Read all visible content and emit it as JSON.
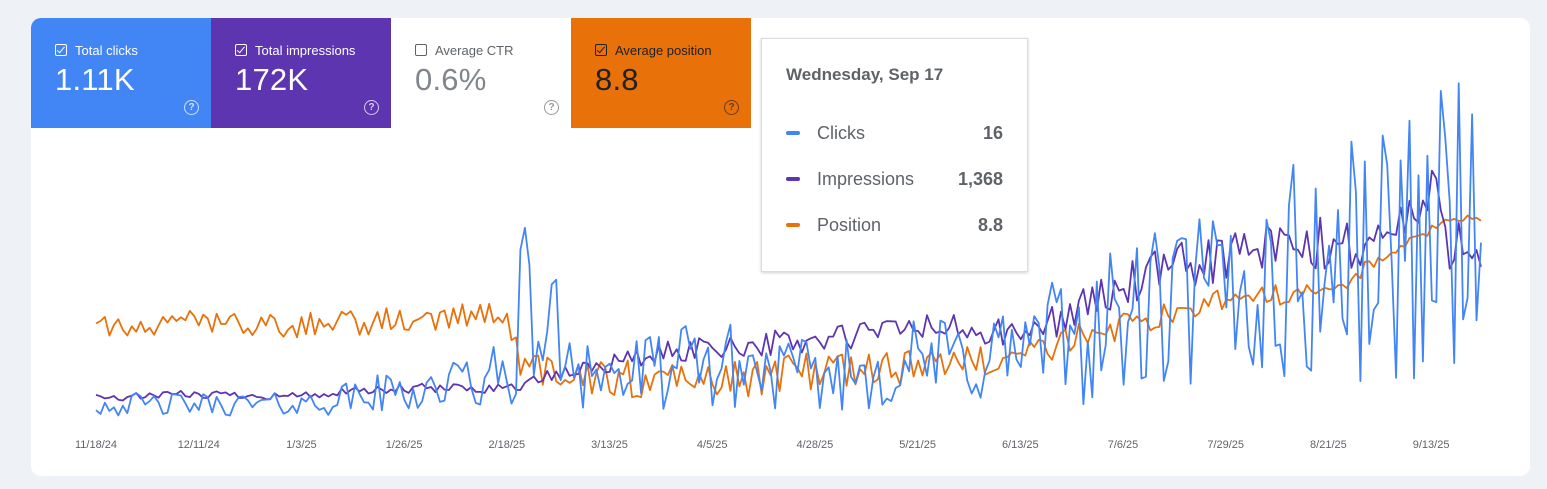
{
  "metrics": {
    "clicks": {
      "label": "Total clicks",
      "value": "1.11K",
      "checked": true,
      "color": "#4285f4"
    },
    "impressions": {
      "label": "Total impressions",
      "value": "172K",
      "checked": true,
      "color": "#5e35b1"
    },
    "ctr": {
      "label": "Average CTR",
      "value": "0.6%",
      "checked": false,
      "color": "#ffffff"
    },
    "position": {
      "label": "Average position",
      "value": "8.8",
      "checked": true,
      "color": "#e8710a"
    },
    "help_glyph": "?"
  },
  "tooltip": {
    "date": "Wednesday, Sep 17",
    "rows": [
      {
        "name": "Clicks",
        "value": "16",
        "color": "#4285f4"
      },
      {
        "name": "Impressions",
        "value": "1,368",
        "color": "#5e35b1"
      },
      {
        "name": "Position",
        "value": "8.8",
        "color": "#e8710a"
      }
    ]
  },
  "chart_data": {
    "type": "line",
    "x_tick_labels": [
      "11/18/24",
      "12/11/24",
      "1/3/25",
      "1/26/25",
      "2/18/25",
      "3/13/25",
      "4/5/25",
      "4/28/25",
      "5/21/25",
      "6/13/25",
      "7/6/25",
      "7/29/25",
      "8/21/25",
      "9/13/25"
    ],
    "grid": false,
    "legend": "none",
    "y_axis_visible": false,
    "series": [
      {
        "name": "Clicks",
        "color": "#4285f4",
        "x": [
          "11/18/24",
          "12/11/24",
          "1/3/25",
          "1/26/25",
          "2/18/25",
          "2/21/25",
          "3/13/25",
          "4/5/25",
          "4/28/25",
          "5/21/25",
          "6/13/25",
          "7/6/25",
          "7/29/25",
          "8/21/25",
          "9/1/25",
          "9/13/25",
          "9/17/25"
        ],
        "values": [
          1,
          1,
          1,
          2,
          3,
          8,
          3,
          4,
          3,
          4,
          5,
          7,
          9,
          11,
          12,
          14,
          16
        ]
      },
      {
        "name": "Impressions",
        "color": "#5e35b1",
        "x": [
          "11/18/24",
          "12/11/24",
          "1/3/25",
          "1/26/25",
          "2/18/25",
          "3/13/25",
          "4/5/25",
          "4/28/25",
          "5/21/25",
          "6/13/25",
          "7/6/25",
          "7/29/25",
          "8/21/25",
          "9/1/25",
          "9/13/25",
          "9/17/25"
        ],
        "values": [
          150,
          180,
          170,
          220,
          230,
          420,
          550,
          580,
          700,
          620,
          1000,
          1250,
          1300,
          1350,
          1650,
          1368
        ]
      },
      {
        "name": "Position",
        "color": "#e8710a",
        "x": [
          "11/18/24",
          "12/11/24",
          "1/3/25",
          "1/26/25",
          "2/18/25",
          "2/21/25",
          "3/13/25",
          "4/5/25",
          "4/28/25",
          "5/21/25",
          "6/13/25",
          "7/6/25",
          "7/29/25",
          "8/21/25",
          "9/13/25",
          "9/17/25"
        ],
        "values": [
          40,
          38,
          40,
          38,
          37,
          52,
          55,
          56,
          53,
          52,
          48,
          40,
          32,
          30,
          12,
          8.8
        ]
      }
    ]
  }
}
